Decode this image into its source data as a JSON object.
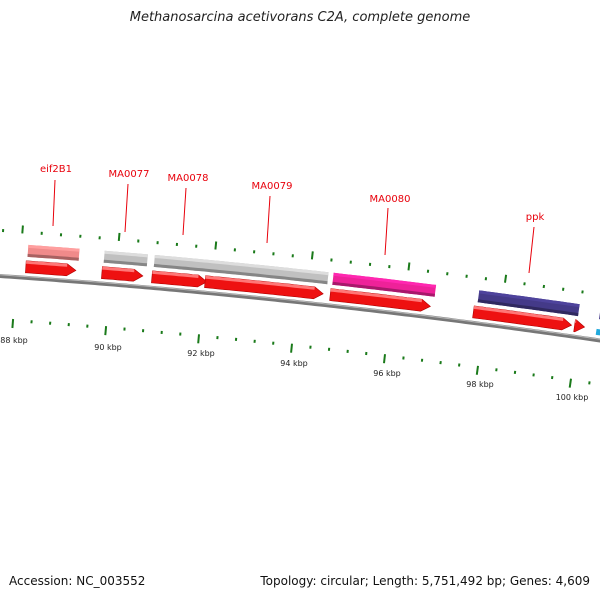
{
  "title": "Methanosarcina acetivorans C2A, complete genome",
  "footer": {
    "accession": "Accession: NC_003552",
    "summary": "Topology: circular; Length: 5,751,492 bp; Genes: 4,609"
  },
  "colors": {
    "cds": "#ee1111",
    "backbone": "#777777",
    "tick": "#1a7a1a",
    "label": "#e8000b"
  },
  "scale_labels": [
    "88 kbp",
    "90 kbp",
    "92 kbp",
    "94 kbp",
    "96 kbp",
    "98 kbp",
    "100 kbp"
  ],
  "genes": [
    {
      "id": "eif2B1",
      "label": "eif2B1",
      "feature_color": "#f08a8a"
    },
    {
      "id": "MA0077",
      "label": "MA0077",
      "feature_color": "#c0c0c0"
    },
    {
      "id": "MA0078",
      "label": "MA0078",
      "feature_color": "#c0c0c0"
    },
    {
      "id": "MA0079",
      "label": "MA0079",
      "feature_color": "#c0c0c0"
    },
    {
      "id": "MA0080",
      "label": "MA0080",
      "feature_color": "#ee2299"
    },
    {
      "id": "ppk",
      "label": "ppk",
      "feature_color": "#443a88"
    }
  ]
}
